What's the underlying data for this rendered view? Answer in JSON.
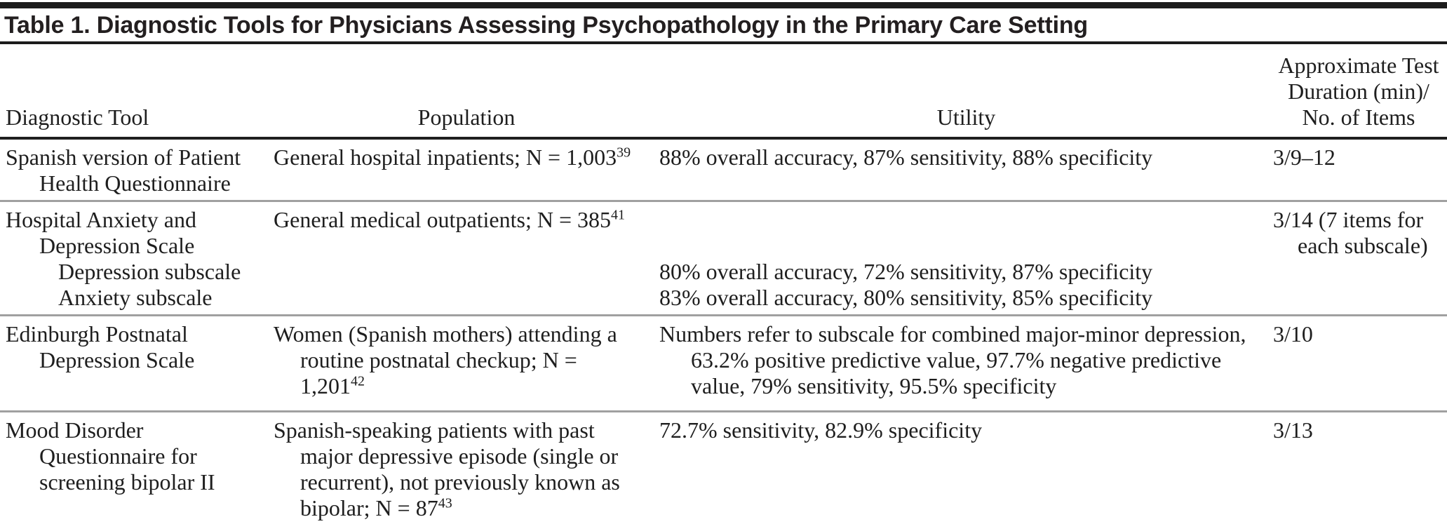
{
  "document": {
    "title": "Table 1. Diagnostic Tools for Physicians Assessing Psychopathology in the Primary Care Setting"
  },
  "table": {
    "columns": {
      "tool": "Diagnostic Tool",
      "population": "Population",
      "utility": "Utility",
      "duration": "Approximate Test Duration (min)/No. of Items",
      "duration_lines": [
        "Approximate Test",
        "Duration (min)/",
        "No. of Items"
      ]
    },
    "rows": [
      {
        "tool": "Spanish version of Patient Health Questionnaire",
        "population": "General hospital inpatients; N = 1,003",
        "population_ref": "39",
        "utility": "88% overall accuracy, 87% sensitivity, 88% specificity",
        "duration": "3/9–12"
      },
      {
        "tool": "Hospital Anxiety and Depression Scale",
        "tool_subitems": [
          "Depression subscale",
          "Anxiety subscale"
        ],
        "population": "General medical outpatients; N = 385",
        "population_ref": "41",
        "utility_lines": [
          "80% overall accuracy, 72% sensitivity, 87% specificity",
          "83% overall accuracy, 80% sensitivity, 85% specificity"
        ],
        "duration": "3/14 (7 items for each subscale)"
      },
      {
        "tool": "Edinburgh Postnatal Depression Scale",
        "population": "Women (Spanish mothers) attending a routine postnatal checkup; N = 1,201",
        "population_ref": "42",
        "utility": "Numbers refer to subscale for combined major-minor depression, 63.2% positive predictive value, 97.7% negative predictive value, 79% sensitivity, 95.5% specificity",
        "duration": "3/10"
      },
      {
        "tool": "Mood Disorder Questionnaire for screening bipolar II",
        "population": "Spanish-speaking patients with past major depressive episode (single or recurrent), not previously known as bipolar; N = 87",
        "population_ref": "43",
        "utility": "72.7% sensitivity, 82.9% specificity",
        "duration": "3/13"
      }
    ]
  },
  "colors": {
    "text": "#1e1e1e",
    "rule_heavy": "#1c1c1c",
    "rule_light": "#a0a0a0"
  }
}
